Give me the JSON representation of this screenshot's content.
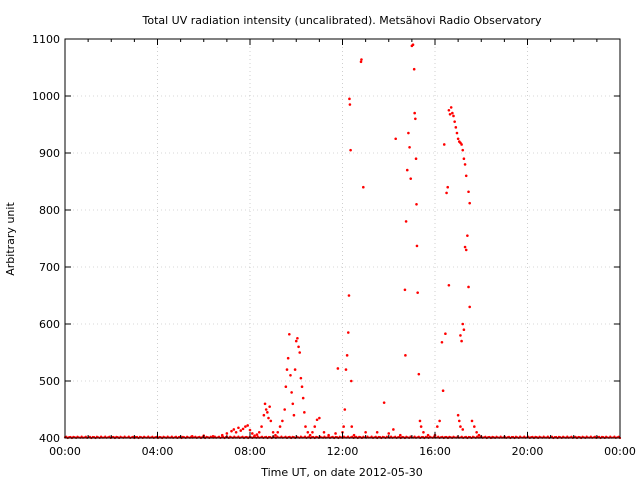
{
  "chart_data": {
    "type": "scatter",
    "title": "Total UV radiation intensity (uncalibrated). Metsähovi Radio Observatory",
    "xlabel": "Time UT, on date 2012-05-30",
    "ylabel": "Arbitrary unit",
    "x_unit": "hours UT",
    "xlim": [
      0,
      24
    ],
    "ylim": [
      400,
      1100
    ],
    "grid": true,
    "marker_color": "#ff0000",
    "xticks": [
      {
        "value": 0,
        "label": "00:00"
      },
      {
        "value": 4,
        "label": "04:00"
      },
      {
        "value": 8,
        "label": "08:00"
      },
      {
        "value": 12,
        "label": "12:00"
      },
      {
        "value": 16,
        "label": "16:00"
      },
      {
        "value": 20,
        "label": "20:00"
      },
      {
        "value": 24,
        "label": "00:00"
      }
    ],
    "yticks": [
      {
        "value": 400,
        "label": "400"
      },
      {
        "value": 500,
        "label": "500"
      },
      {
        "value": 600,
        "label": "600"
      },
      {
        "value": 700,
        "label": "700"
      },
      {
        "value": 800,
        "label": "800"
      },
      {
        "value": 900,
        "label": "900"
      },
      {
        "value": 1000,
        "label": "1000"
      },
      {
        "value": 1100,
        "label": "1100"
      }
    ],
    "baseline_value": 400,
    "points": [
      [
        5.0,
        402
      ],
      [
        5.5,
        403
      ],
      [
        6.0,
        404
      ],
      [
        6.4,
        403
      ],
      [
        6.8,
        405
      ],
      [
        7.0,
        408
      ],
      [
        7.2,
        412
      ],
      [
        7.3,
        415
      ],
      [
        7.4,
        410
      ],
      [
        7.5,
        418
      ],
      [
        7.6,
        413
      ],
      [
        7.7,
        416
      ],
      [
        7.8,
        420
      ],
      [
        7.9,
        422
      ],
      [
        8.0,
        414
      ],
      [
        8.1,
        408
      ],
      [
        8.2,
        404
      ],
      [
        8.3,
        406
      ],
      [
        8.4,
        410
      ],
      [
        8.5,
        420
      ],
      [
        8.6,
        440
      ],
      [
        8.65,
        460
      ],
      [
        8.7,
        450
      ],
      [
        8.75,
        445
      ],
      [
        8.8,
        435
      ],
      [
        8.85,
        455
      ],
      [
        8.9,
        430
      ],
      [
        9.0,
        410
      ],
      [
        9.1,
        405
      ],
      [
        9.2,
        410
      ],
      [
        9.3,
        420
      ],
      [
        9.4,
        430
      ],
      [
        9.5,
        450
      ],
      [
        9.55,
        490
      ],
      [
        9.6,
        520
      ],
      [
        9.65,
        540
      ],
      [
        9.7,
        582
      ],
      [
        9.75,
        510
      ],
      [
        9.8,
        480
      ],
      [
        9.85,
        460
      ],
      [
        9.9,
        440
      ],
      [
        9.95,
        520
      ],
      [
        10.0,
        570
      ],
      [
        10.05,
        575
      ],
      [
        10.1,
        560
      ],
      [
        10.15,
        550
      ],
      [
        10.2,
        505
      ],
      [
        10.25,
        490
      ],
      [
        10.3,
        470
      ],
      [
        10.35,
        445
      ],
      [
        10.4,
        420
      ],
      [
        10.5,
        410
      ],
      [
        10.6,
        405
      ],
      [
        10.7,
        410
      ],
      [
        10.8,
        420
      ],
      [
        10.9,
        432
      ],
      [
        11.0,
        435
      ],
      [
        11.2,
        410
      ],
      [
        11.4,
        405
      ],
      [
        11.7,
        408
      ],
      [
        11.8,
        522
      ],
      [
        12.0,
        410
      ],
      [
        12.05,
        420
      ],
      [
        12.1,
        450
      ],
      [
        12.15,
        520
      ],
      [
        12.2,
        545
      ],
      [
        12.25,
        585
      ],
      [
        12.28,
        650
      ],
      [
        12.3,
        995
      ],
      [
        12.32,
        985
      ],
      [
        12.35,
        905
      ],
      [
        12.38,
        500
      ],
      [
        12.4,
        420
      ],
      [
        12.5,
        405
      ],
      [
        12.8,
        1060
      ],
      [
        12.82,
        1064
      ],
      [
        12.9,
        840
      ],
      [
        13.0,
        410
      ],
      [
        13.5,
        410
      ],
      [
        13.8,
        462
      ],
      [
        14.0,
        408
      ],
      [
        14.2,
        415
      ],
      [
        14.3,
        925
      ],
      [
        14.5,
        405
      ],
      [
        14.7,
        660
      ],
      [
        14.72,
        545
      ],
      [
        14.75,
        780
      ],
      [
        14.8,
        870
      ],
      [
        14.85,
        935
      ],
      [
        14.9,
        910
      ],
      [
        14.95,
        855
      ],
      [
        15.0,
        1088
      ],
      [
        15.05,
        1090
      ],
      [
        15.1,
        1047
      ],
      [
        15.12,
        970
      ],
      [
        15.15,
        960
      ],
      [
        15.18,
        890
      ],
      [
        15.2,
        810
      ],
      [
        15.22,
        737
      ],
      [
        15.25,
        655
      ],
      [
        15.3,
        512
      ],
      [
        15.35,
        430
      ],
      [
        15.4,
        420
      ],
      [
        15.5,
        410
      ],
      [
        15.7,
        405
      ],
      [
        16.0,
        405
      ],
      [
        16.1,
        420
      ],
      [
        16.2,
        430
      ],
      [
        16.3,
        568
      ],
      [
        16.35,
        483
      ],
      [
        16.4,
        915
      ],
      [
        16.45,
        583
      ],
      [
        16.5,
        830
      ],
      [
        16.55,
        840
      ],
      [
        16.6,
        668
      ],
      [
        16.6,
        975
      ],
      [
        16.65,
        968
      ],
      [
        16.7,
        980
      ],
      [
        16.75,
        970
      ],
      [
        16.8,
        965
      ],
      [
        16.85,
        955
      ],
      [
        16.9,
        945
      ],
      [
        16.95,
        935
      ],
      [
        17.0,
        925
      ],
      [
        17.05,
        920
      ],
      [
        17.1,
        918
      ],
      [
        17.15,
        915
      ],
      [
        17.2,
        905
      ],
      [
        17.25,
        890
      ],
      [
        17.3,
        880
      ],
      [
        17.35,
        860
      ],
      [
        17.2,
        600
      ],
      [
        17.25,
        590
      ],
      [
        17.3,
        735
      ],
      [
        17.35,
        730
      ],
      [
        17.4,
        755
      ],
      [
        17.45,
        832
      ],
      [
        17.5,
        812
      ],
      [
        17.45,
        665
      ],
      [
        17.5,
        630
      ],
      [
        17.1,
        580
      ],
      [
        17.15,
        570
      ],
      [
        17.0,
        440
      ],
      [
        17.05,
        430
      ],
      [
        17.1,
        420
      ],
      [
        17.2,
        415
      ],
      [
        17.6,
        430
      ],
      [
        17.7,
        420
      ],
      [
        17.8,
        410
      ],
      [
        17.9,
        405
      ],
      [
        18.0,
        402
      ],
      [
        18.5,
        401
      ],
      [
        19.0,
        401
      ]
    ]
  }
}
